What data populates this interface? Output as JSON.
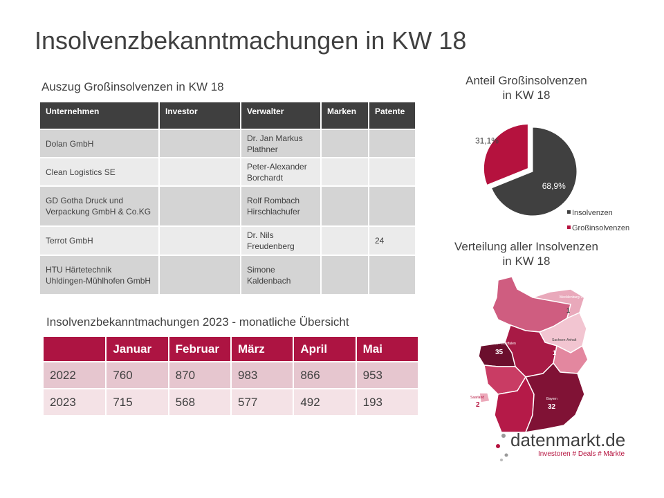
{
  "title": "Insolvenzbekanntmachungen in KW 18",
  "table1": {
    "caption": "Auszug Großinsolvenzen in KW 18",
    "header": [
      "Unternehmen",
      "Investor",
      "Verwalter",
      "Marken",
      "Patente"
    ],
    "rows": [
      [
        "Dolan GmbH",
        null,
        "Dr. Jan Markus Plathner",
        null,
        null
      ],
      [
        "Clean Logistics SE",
        null,
        "Peter-Alexander Borchardt",
        null,
        null
      ],
      [
        "GD Gotha Druck und Verpackung GmbH & Co.KG",
        null,
        "Rolf Rombach Hirschlachufer",
        null,
        null
      ],
      [
        "Terrot GmbH",
        null,
        "Dr. Nils Freudenberg",
        null,
        "24"
      ],
      [
        "HTU Härtetechnik Uhldingen-Mühlhofen GmbH",
        null,
        "Simone Kaldenbach",
        null,
        null
      ]
    ]
  },
  "table2": {
    "caption": "Insolvenzbekanntmachungen 2023 - monatliche Übersicht",
    "header": [
      "Januar",
      "Februar",
      "März",
      "April",
      "Mai"
    ],
    "rows": [
      {
        "year": "2022",
        "values": [
          760,
          870,
          983,
          866,
          953
        ]
      },
      {
        "year": "2023",
        "values": [
          715,
          568,
          577,
          492,
          193
        ]
      }
    ]
  },
  "chart_data": {
    "type": "pie",
    "title": "Anteil Großinsolvenzen in KW 18",
    "categories": [
      "Insolvenzen",
      "Großinsolvenzen"
    ],
    "values": [
      68.9,
      31.1
    ],
    "value_labels": [
      "68,9%",
      "31,1%"
    ],
    "colors": [
      "#404040",
      "#b5123e"
    ],
    "legend": "bottom-right"
  },
  "map": {
    "title": "Verteilung aller Insolvenzen in KW 18",
    "regions": [
      {
        "name": "Mecklenburg-Vorpommern",
        "value": 1
      },
      {
        "name": "Sachsen-Anhalt",
        "value": 1
      },
      {
        "name": "Nordrhein-Westfalen",
        "value": 35
      },
      {
        "name": "Saarland",
        "value": 2
      },
      {
        "name": "Bayern",
        "value": 32
      }
    ]
  },
  "logo": {
    "name": "datenmarkt.de",
    "tagline": "Investoren # Deals # Märkte"
  }
}
